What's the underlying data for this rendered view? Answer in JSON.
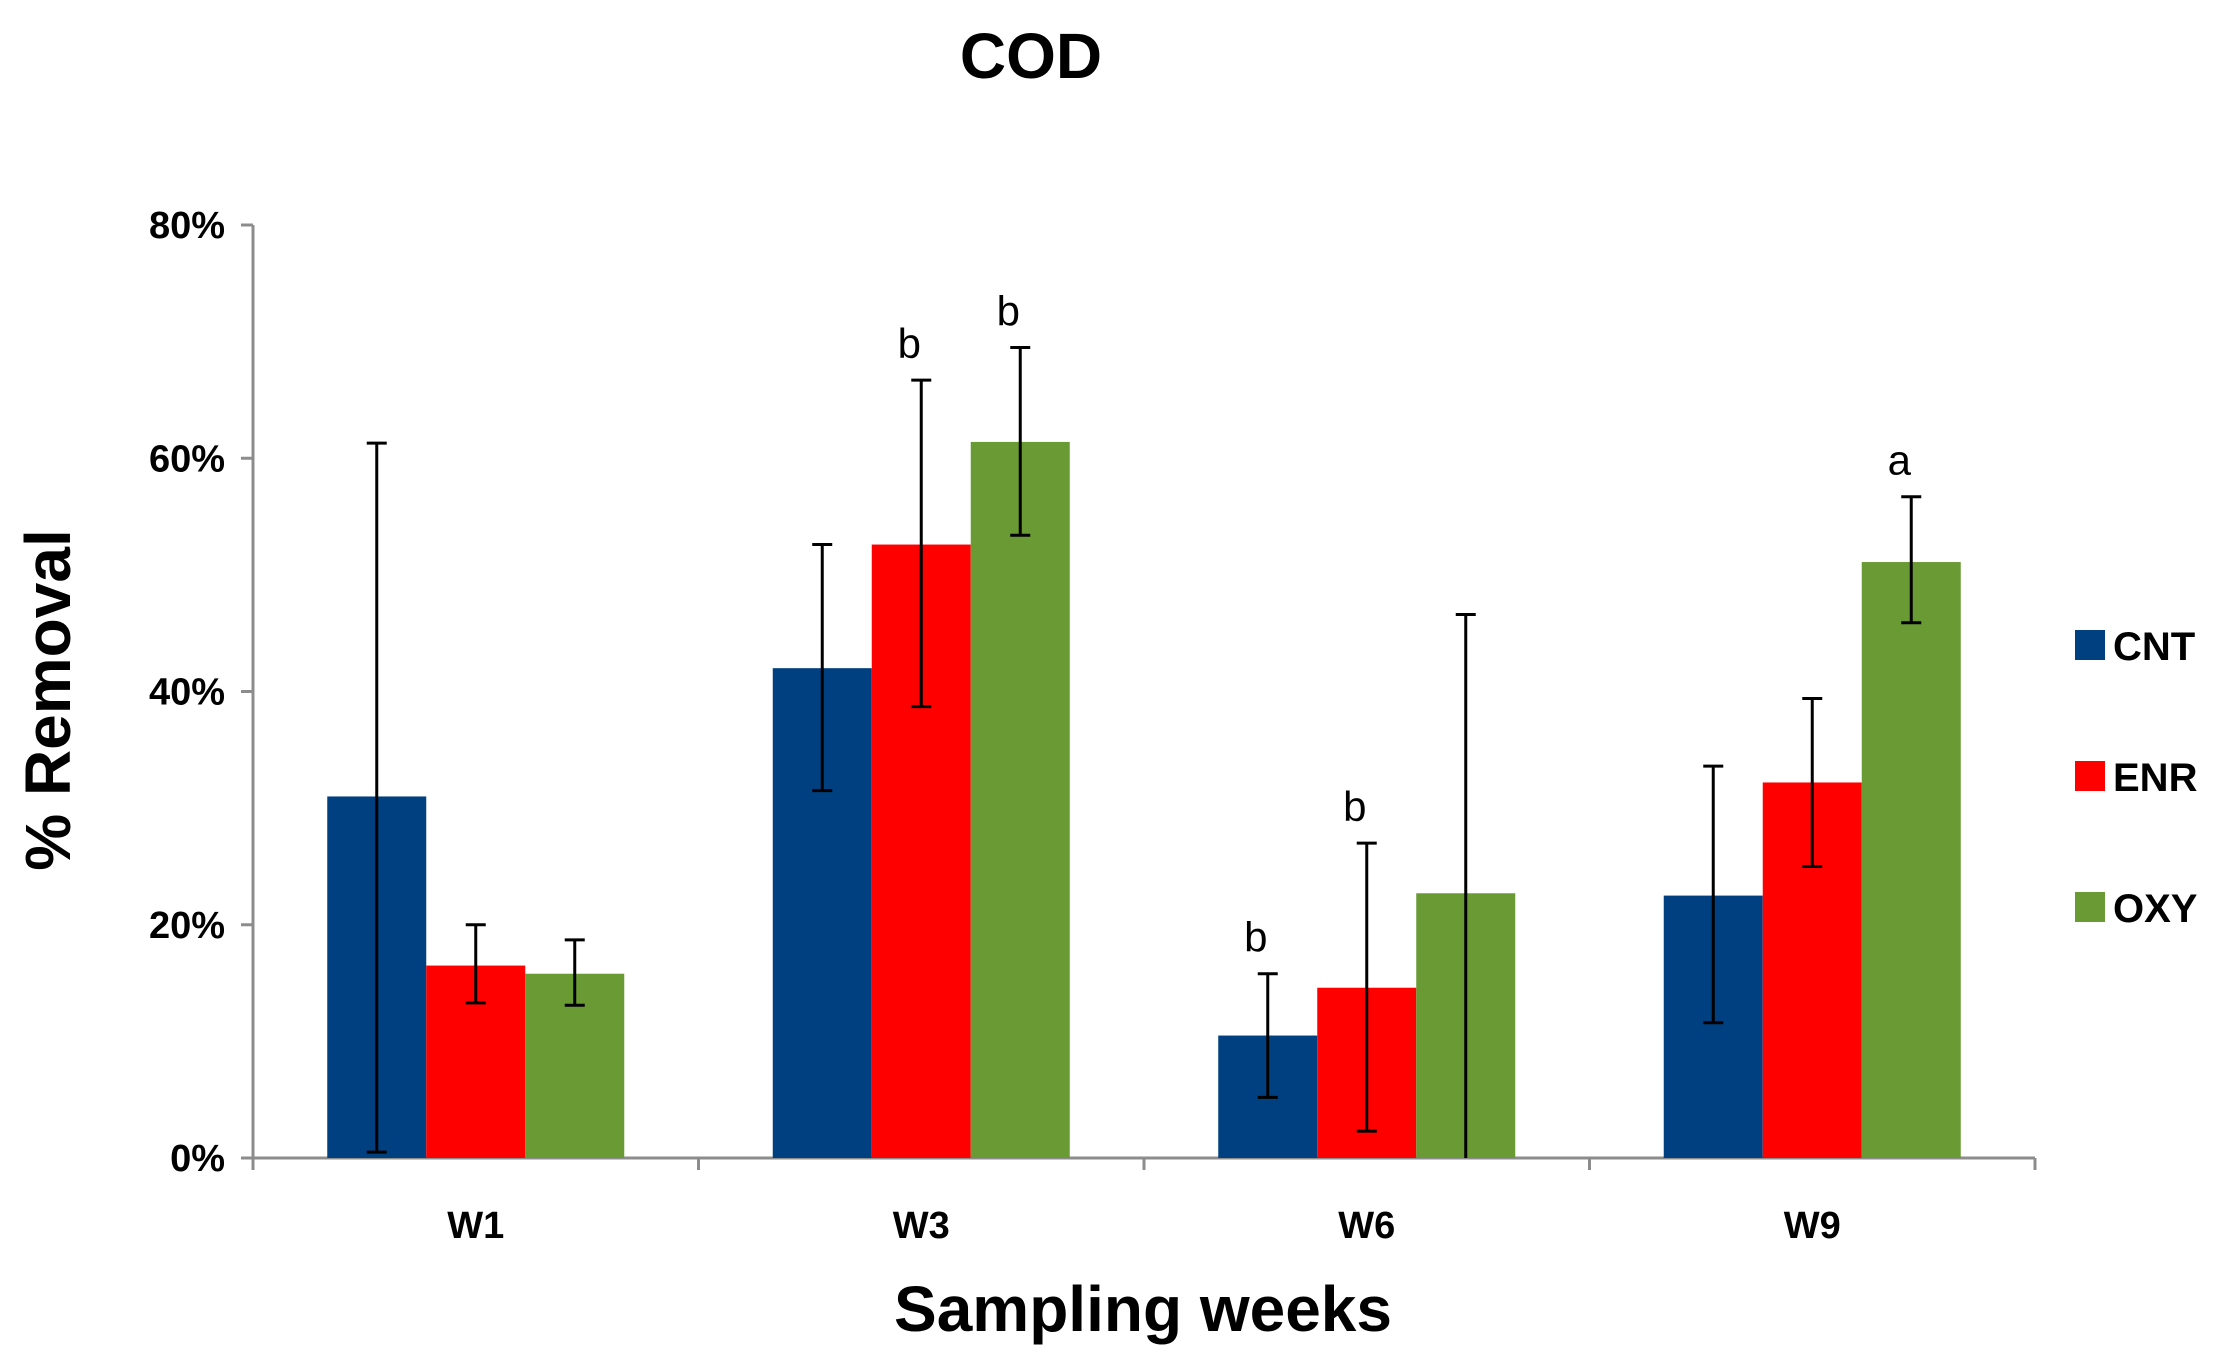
{
  "chart_data": {
    "type": "bar",
    "title": "COD",
    "xlabel": "Sampling weeks",
    "ylabel": "% Removal",
    "categories": [
      "W1",
      "W3",
      "W6",
      "W9"
    ],
    "ylim": [
      0,
      0.8
    ],
    "yticks": [
      0,
      0.2,
      0.4,
      0.6,
      0.8
    ],
    "ytick_labels": [
      "0%",
      "20%",
      "40%",
      "60%",
      "80%"
    ],
    "legend_position": "right",
    "series": [
      {
        "name": "CNT",
        "color": "#004080",
        "values": [
          0.31,
          0.42,
          0.105,
          0.225
        ],
        "err_low": [
          0.005,
          0.315,
          0.052,
          0.116
        ],
        "err_high": [
          0.613,
          0.526,
          0.158,
          0.336
        ],
        "annotations": [
          "",
          "",
          "b",
          ""
        ]
      },
      {
        "name": "ENR",
        "color": "#ff0000",
        "values": [
          0.165,
          0.526,
          0.146,
          0.322
        ],
        "err_low": [
          0.133,
          0.387,
          0.023,
          0.25
        ],
        "err_high": [
          0.2,
          0.667,
          0.27,
          0.394
        ],
        "annotations": [
          "",
          "b",
          "b",
          ""
        ]
      },
      {
        "name": "OXY",
        "color": "#6a9a34",
        "values": [
          0.158,
          0.614,
          0.227,
          0.511
        ],
        "err_low": [
          0.131,
          0.534,
          0.0,
          0.459
        ],
        "err_high": [
          0.187,
          0.695,
          0.466,
          0.567
        ],
        "annotations": [
          "",
          "b",
          "",
          "a"
        ]
      }
    ]
  }
}
